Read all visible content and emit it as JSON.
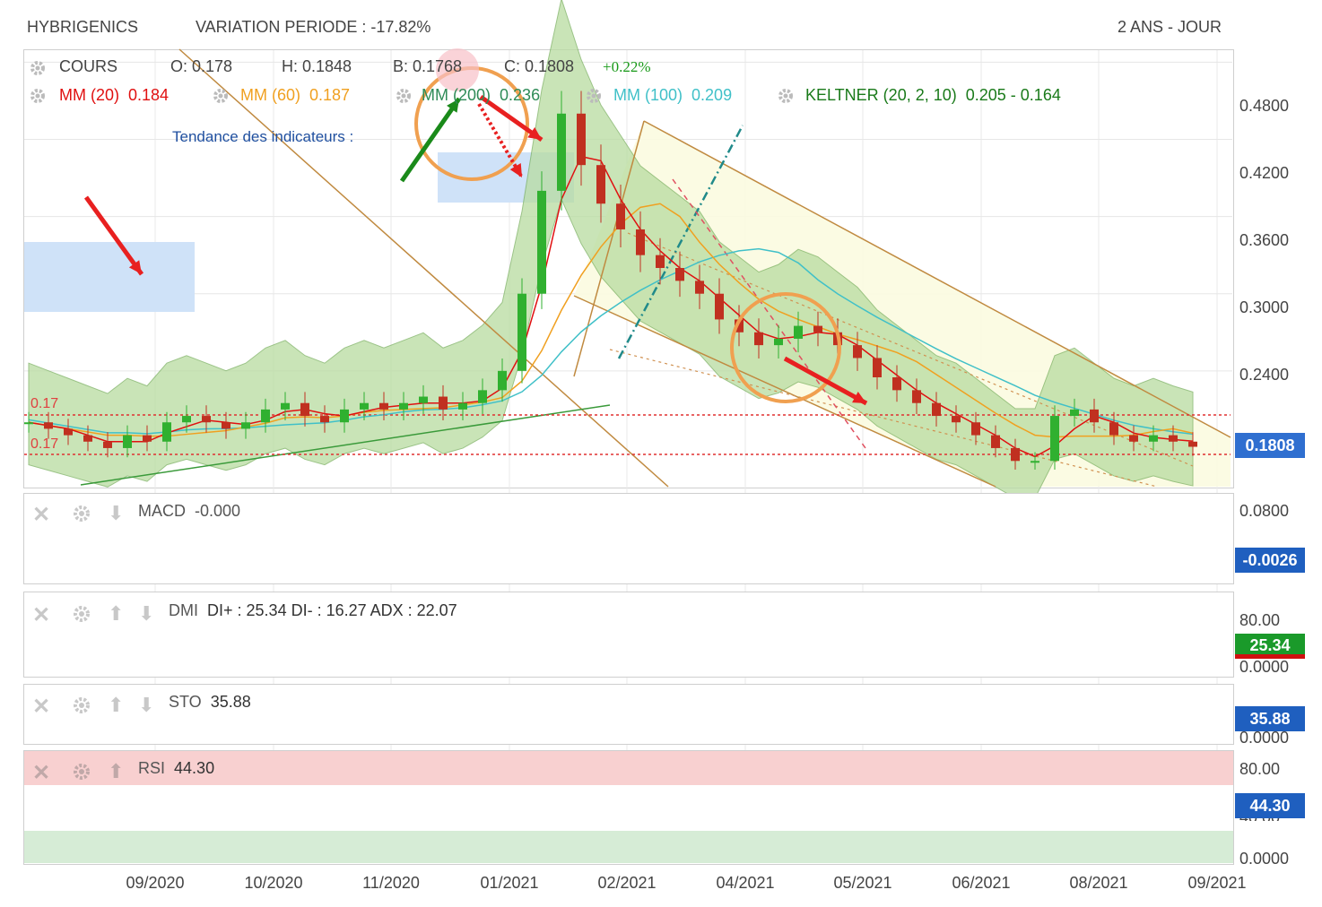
{
  "header": {
    "ticker": "HYBRIGENICS",
    "variation": "VARIATION PERIODE : -17.82%",
    "period": "2 ANS - JOUR"
  },
  "ohlc": {
    "label": "COURS",
    "open": "O: 0.178",
    "high": "H: 0.1848",
    "low": "B: 0.1768",
    "close": "C: 0.1808",
    "change": "+0.22%"
  },
  "indicators": {
    "mm20": {
      "label": "MM (20)",
      "value": "0.184",
      "color": "#e01010"
    },
    "mm60": {
      "label": "MM (60)",
      "value": "0.187",
      "color": "#f0a020"
    },
    "mm200": {
      "label": "MM (200)",
      "value": "0.236",
      "color": "#2e8b57"
    },
    "mm100": {
      "label": "MM (100)",
      "value": "0.209",
      "color": "#40c0c8"
    },
    "keltner": {
      "label": "KELTNER (20, 2, 10)",
      "value": "0.205 - 0.164",
      "color": "#1a7a1a"
    }
  },
  "annotation": {
    "trend": "Tendance des indicateurs :"
  },
  "price_levels": {
    "upper": "0.17",
    "lower": "0.17"
  },
  "subpanels": {
    "macd": {
      "label": "MACD",
      "value": "-0.000",
      "tag": "-0.0026",
      "tag_color": "#1f5fbf"
    },
    "dmi": {
      "label": "DMI",
      "value": "DI+ : 25.34 DI- : 16.27 ADX : 22.07",
      "tag": "25.34",
      "tag_color": "#1a9a2a"
    },
    "sto": {
      "label": "STO",
      "value": "35.88",
      "tag": "35.88",
      "tag_color": "#1f5fbf"
    },
    "rsi": {
      "label": "RSI",
      "value": "44.30",
      "tag": "44.30",
      "tag_color": "#1f5fbf"
    }
  },
  "chart_data": {
    "type": "line",
    "x_ticks": [
      "09/2020",
      "10/2020",
      "11/2020",
      "01/2021",
      "02/2021",
      "04/2021",
      "05/2021",
      "06/2021",
      "08/2021",
      "09/2021"
    ],
    "price_axis": {
      "ticks": [
        "0.4800",
        "0.4200",
        "0.3600",
        "0.3000",
        "0.2400"
      ],
      "ylim": [
        0.15,
        0.49
      ],
      "last": "0.1808"
    },
    "macd_axis": {
      "ticks": [
        "0.0800"
      ]
    },
    "dmi_axis": {
      "ticks": [
        "80.00",
        "0.0000"
      ]
    },
    "sto_axis": {
      "ticks": [
        "0.0000"
      ]
    },
    "rsi_axis": {
      "ticks": [
        "80.00",
        "40.00",
        "0.0000"
      ]
    },
    "close_series": [
      0.2,
      0.195,
      0.19,
      0.185,
      0.18,
      0.19,
      0.185,
      0.2,
      0.205,
      0.2,
      0.195,
      0.2,
      0.21,
      0.215,
      0.205,
      0.2,
      0.21,
      0.215,
      0.21,
      0.215,
      0.22,
      0.21,
      0.215,
      0.225,
      0.24,
      0.3,
      0.38,
      0.44,
      0.4,
      0.37,
      0.35,
      0.33,
      0.32,
      0.31,
      0.3,
      0.28,
      0.27,
      0.26,
      0.265,
      0.275,
      0.27,
      0.26,
      0.25,
      0.235,
      0.225,
      0.215,
      0.205,
      0.2,
      0.19,
      0.18,
      0.17,
      0.17,
      0.205,
      0.21,
      0.2,
      0.19,
      0.185,
      0.19,
      0.185,
      0.181
    ]
  }
}
